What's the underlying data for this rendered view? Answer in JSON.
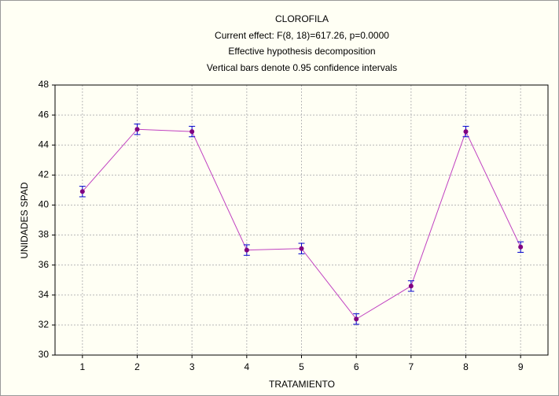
{
  "chart_data": {
    "type": "line",
    "title": "CLOROFILA",
    "subtitle": [
      "Current effect: F(8, 18)=617.26, p=0.0000",
      "Effective hypothesis decomposition",
      "Vertical bars denote 0.95 confidence intervals"
    ],
    "x_label": "TRATAMIENTO",
    "y_label": "UNIDADES SPAD",
    "x": [
      1,
      2,
      3,
      4,
      5,
      6,
      7,
      8,
      9
    ],
    "series": [
      {
        "color": "#c040c0",
        "marker_color": "#800080",
        "error_color": "#0000cc",
        "values": [
          40.9,
          45.05,
          44.9,
          37.0,
          37.1,
          32.4,
          34.6,
          44.9,
          37.2
        ],
        "errors": [
          0.35,
          0.35,
          0.35,
          0.35,
          0.35,
          0.35,
          0.35,
          0.35,
          0.35
        ]
      }
    ],
    "xlim": [
      0.5,
      9.5
    ],
    "xticks": [
      1,
      2,
      3,
      4,
      5,
      6,
      7,
      8,
      9
    ],
    "ylim": [
      30,
      48
    ],
    "yticks": [
      30,
      32,
      34,
      36,
      38,
      40,
      42,
      44,
      46,
      48
    ],
    "grid": true
  }
}
